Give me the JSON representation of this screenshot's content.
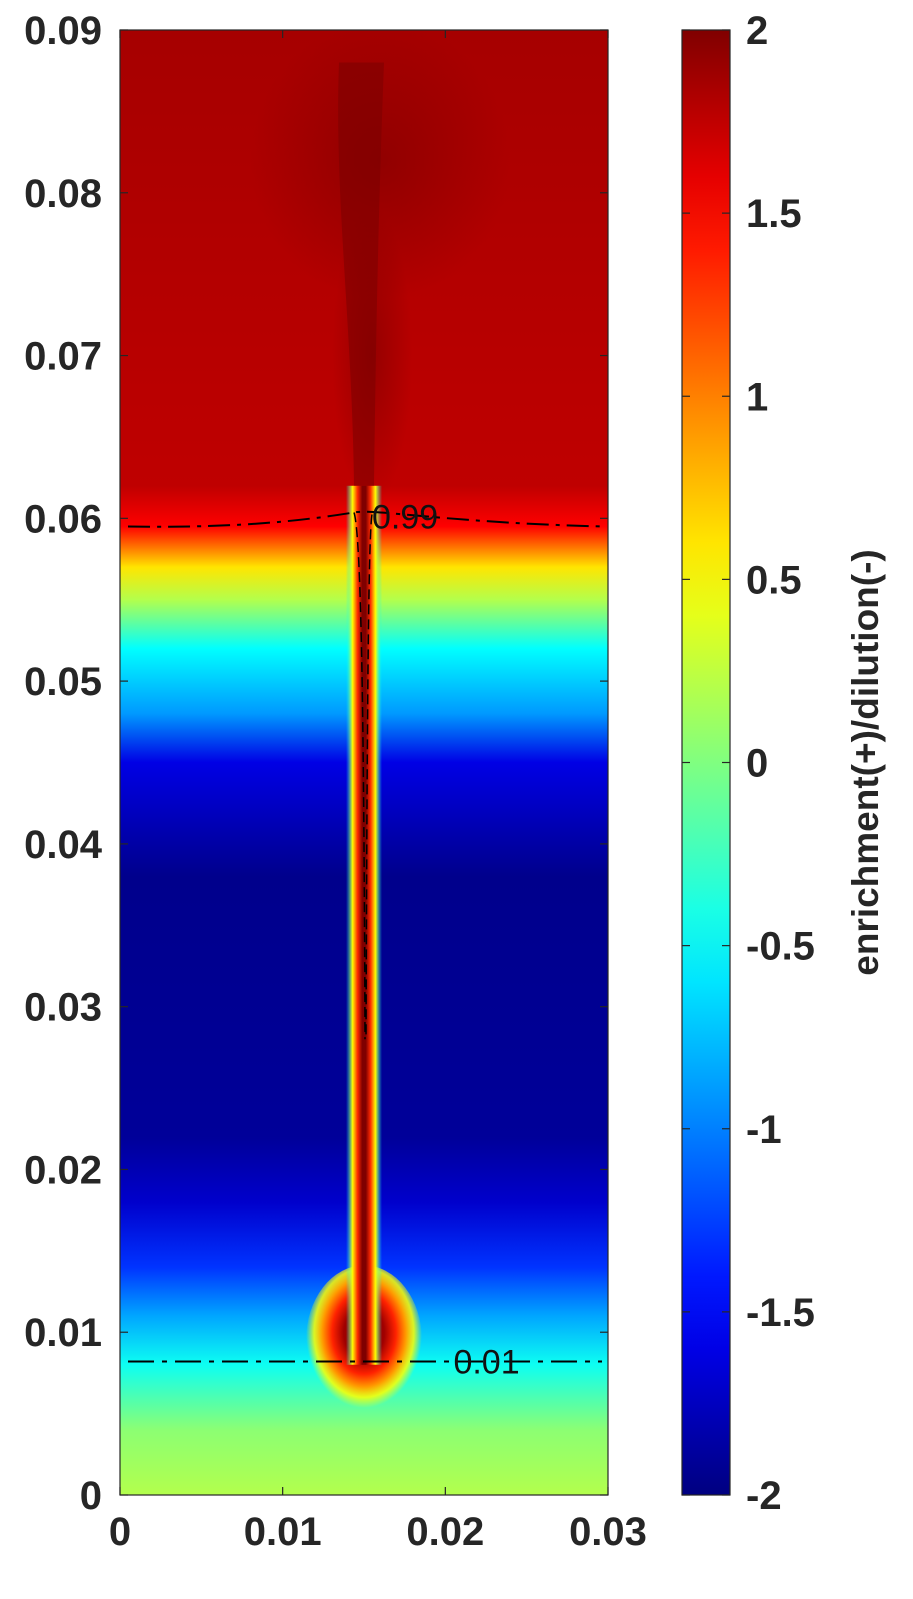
{
  "chart_data": {
    "type": "heatmap",
    "title": "",
    "xlabel": "",
    "ylabel": "",
    "xlim": [
      0,
      0.03
    ],
    "ylim": [
      0,
      0.09
    ],
    "x_ticks": [
      0,
      0.01,
      0.02,
      0.03
    ],
    "x_tick_labels": [
      "0",
      "0.01",
      "0.02",
      "0.03"
    ],
    "y_ticks": [
      0,
      0.01,
      0.02,
      0.03,
      0.04,
      0.05,
      0.06,
      0.07,
      0.08,
      0.09
    ],
    "y_tick_labels": [
      "0",
      "0.01",
      "0.02",
      "0.03",
      "0.04",
      "0.05",
      "0.06",
      "0.07",
      "0.08",
      "0.09"
    ],
    "colormap": "jet",
    "colorbar": {
      "label": "enrichment(+)/dilution(-)",
      "range": [
        -2,
        2
      ],
      "ticks": [
        -2,
        -1.5,
        -1,
        -0.5,
        0,
        0.5,
        1,
        1.5,
        2
      ],
      "tick_labels": [
        "-2",
        "-1.5",
        "-1",
        "-0.5",
        "0",
        "0.5",
        "1",
        "1.5",
        "2"
      ]
    },
    "field_profile_along_y": [
      {
        "y": 0.0,
        "value": 0.2
      },
      {
        "y": 0.004,
        "value": 0.05
      },
      {
        "y": 0.008,
        "value": -0.45
      },
      {
        "y": 0.011,
        "value": -0.85
      },
      {
        "y": 0.014,
        "value": -1.3
      },
      {
        "y": 0.018,
        "value": -1.7
      },
      {
        "y": 0.022,
        "value": -1.9
      },
      {
        "y": 0.038,
        "value": -1.95
      },
      {
        "y": 0.045,
        "value": -1.6
      },
      {
        "y": 0.048,
        "value": -0.9
      },
      {
        "y": 0.052,
        "value": -0.5
      },
      {
        "y": 0.055,
        "value": 0.2
      },
      {
        "y": 0.057,
        "value": 0.6
      },
      {
        "y": 0.0595,
        "value": 1.5
      },
      {
        "y": 0.062,
        "value": 1.75
      },
      {
        "y": 0.09,
        "value": 1.85
      }
    ],
    "plume": {
      "x": 0.015,
      "y_range": [
        0.008,
        0.09
      ],
      "value": 2
    },
    "bulb": {
      "x": 0.015,
      "y": 0.0095,
      "value": 2
    },
    "contours": [
      {
        "level": "0.99",
        "label": "0.99",
        "y_approx": 0.0595
      },
      {
        "level": "0.01",
        "label": "0.01",
        "y_approx": 0.0082
      }
    ]
  }
}
